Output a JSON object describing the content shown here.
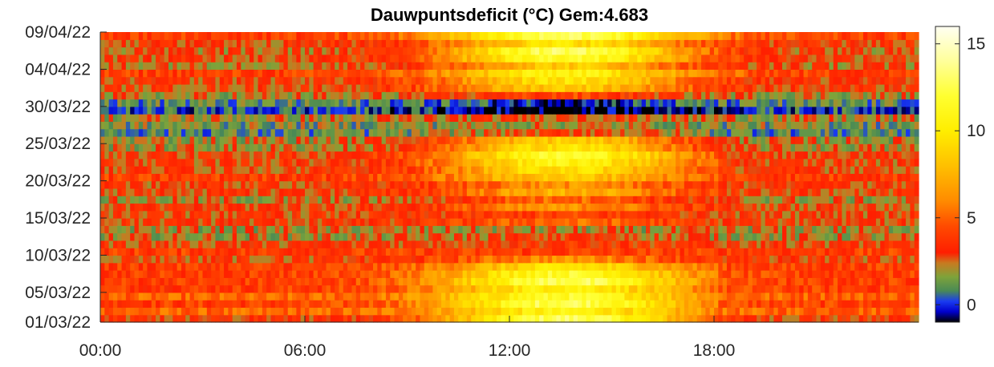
{
  "chart_data": {
    "type": "heatmap",
    "title": "Dauwpuntsdeficit (°C) Gem:4.683",
    "xlabel": "",
    "ylabel": "",
    "x_ticks": [
      "00:00",
      "06:00",
      "12:00",
      "18:00"
    ],
    "x_tick_hours": [
      0,
      6,
      12,
      18
    ],
    "x_range_hours": [
      0,
      24
    ],
    "y_ticks": [
      "01/03/22",
      "05/03/22",
      "10/03/22",
      "15/03/22",
      "20/03/22",
      "25/03/22",
      "30/03/22",
      "04/04/22",
      "09/04/22"
    ],
    "y_tick_days": [
      0,
      4,
      9,
      14,
      19,
      24,
      29,
      34,
      39
    ],
    "y_range_days": [
      0,
      39
    ],
    "date_range": [
      "01/03/22",
      "09/04/22"
    ],
    "colorbar": {
      "ticks": [
        0,
        5,
        10,
        15
      ],
      "range": [
        -1,
        16
      ],
      "colormap": [
        {
          "v": -1.0,
          "c": "#000000"
        },
        {
          "v": -0.4,
          "c": "#0000cc"
        },
        {
          "v": 0.2,
          "c": "#1a3cf0"
        },
        {
          "v": 0.8,
          "c": "#4a8a55"
        },
        {
          "v": 1.6,
          "c": "#7ea33a"
        },
        {
          "v": 2.4,
          "c": "#c87a20"
        },
        {
          "v": 3.0,
          "c": "#ff1e00"
        },
        {
          "v": 4.5,
          "c": "#ff4a00"
        },
        {
          "v": 6.0,
          "c": "#ff8c00"
        },
        {
          "v": 8.0,
          "c": "#ffc000"
        },
        {
          "v": 10.0,
          "c": "#ffee00"
        },
        {
          "v": 12.0,
          "c": "#ffff30"
        },
        {
          "v": 14.0,
          "c": "#ffff9a"
        },
        {
          "v": 16.0,
          "c": "#fffff2"
        }
      ]
    },
    "mean": 4.683,
    "grid": false
  }
}
